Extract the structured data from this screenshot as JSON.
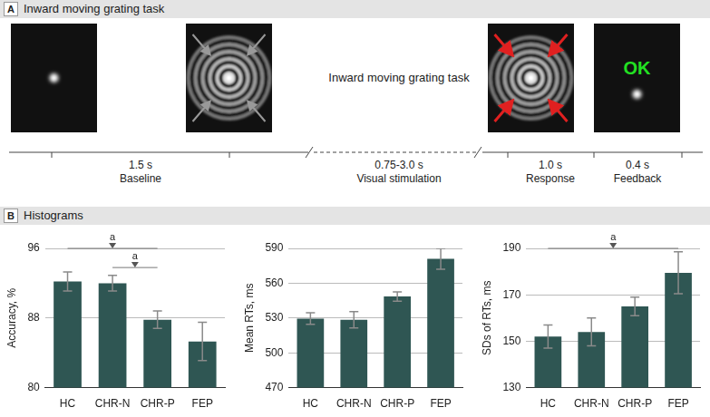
{
  "panel_a": {
    "label": "A",
    "title": "Inward moving grating task",
    "middle_text": "Inward moving grating task",
    "feedback_text": "OK",
    "phases": [
      {
        "duration": "1.5 s",
        "name": "Baseline"
      },
      {
        "duration": "0.75-3.0 s",
        "name": "Visual stimulation"
      },
      {
        "duration": "1.0 s",
        "name": "Response"
      },
      {
        "duration": "0.4 s",
        "name": "Feedback"
      }
    ]
  },
  "panel_b": {
    "label": "B",
    "title": "Histograms"
  },
  "chart_data": [
    {
      "type": "bar",
      "y_label": "Accuracy, %",
      "categories": [
        "HC",
        "CHR-N",
        "CHR-P",
        "FEP"
      ],
      "values": [
        92.2,
        92.0,
        87.8,
        85.3
      ],
      "errors": [
        1.1,
        0.9,
        1.0,
        2.2
      ],
      "color": "#2f5653",
      "ylim": [
        80,
        96
      ],
      "yticks": [
        80,
        88,
        96
      ],
      "grid": true,
      "significance": [
        {
          "from": "HC",
          "to": "CHR-P",
          "y": 96,
          "label": "a"
        },
        {
          "from": "CHR-N",
          "to": "CHR-P",
          "y": 93.8,
          "label": "a"
        }
      ]
    },
    {
      "type": "bar",
      "y_label": "Mean RTs, ms",
      "categories": [
        "HC",
        "CHR-N",
        "CHR-P",
        "FEP"
      ],
      "values": [
        529.5,
        528.5,
        548.5,
        581
      ],
      "errors": [
        5,
        7,
        4,
        9
      ],
      "color": "#2f5653",
      "ylim": [
        470,
        590
      ],
      "yticks": [
        470,
        500,
        530,
        560,
        590
      ],
      "grid": true,
      "significance": []
    },
    {
      "type": "bar",
      "y_label": "SDs of RTs, ms",
      "categories": [
        "HC",
        "CHR-N",
        "CHR-P",
        "FEP"
      ],
      "values": [
        152,
        154,
        165,
        179.5
      ],
      "errors": [
        5,
        6,
        4,
        9
      ],
      "color": "#2f5653",
      "ylim": [
        130,
        190
      ],
      "yticks": [
        130,
        150,
        170,
        190
      ],
      "grid": true,
      "significance": [
        {
          "from": "HC",
          "to": "FEP",
          "y": 190,
          "label": "a"
        }
      ]
    }
  ]
}
